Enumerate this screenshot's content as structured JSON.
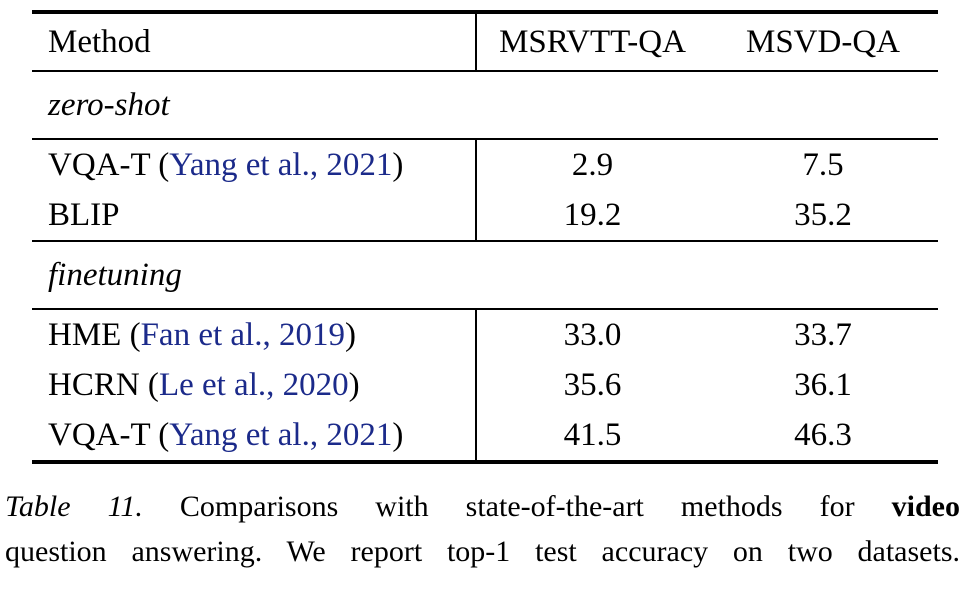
{
  "table": {
    "header": {
      "method": "Method",
      "col1": "MSRVTT-QA",
      "col2": "MSVD-QA"
    },
    "sections": [
      {
        "label": "zero-shot",
        "rows": [
          {
            "method_pre": "VQA-T (",
            "citation": "Yang et al., 2021",
            "method_post": ")",
            "msrvtt": "2.9",
            "msvd": "7.5"
          },
          {
            "method_pre": "BLIP",
            "citation": "",
            "method_post": "",
            "msrvtt": "19.2",
            "msvd": "35.2"
          }
        ]
      },
      {
        "label": "finetuning",
        "rows": [
          {
            "method_pre": "HME (",
            "citation": "Fan et al., 2019",
            "method_post": ")",
            "msrvtt": "33.0",
            "msvd": "33.7"
          },
          {
            "method_pre": "HCRN (",
            "citation": "Le et al., 2020",
            "method_post": ")",
            "msrvtt": "35.6",
            "msvd": "36.1"
          },
          {
            "method_pre": "VQA-T (",
            "citation": "Yang et al., 2021",
            "method_post": ")",
            "msrvtt": "41.5",
            "msvd": "46.3"
          }
        ]
      }
    ]
  },
  "caption": {
    "label": "Table 11.",
    "line1_rest": " Comparisons with state-of-the-art methods for ",
    "bold_word": "video",
    "line2": "question answering. We report top-1 test accuracy on two datasets."
  },
  "colors": {
    "citation_link": "#1b2a8a",
    "text": "#000000",
    "background": "#ffffff",
    "rule": "#000000"
  }
}
